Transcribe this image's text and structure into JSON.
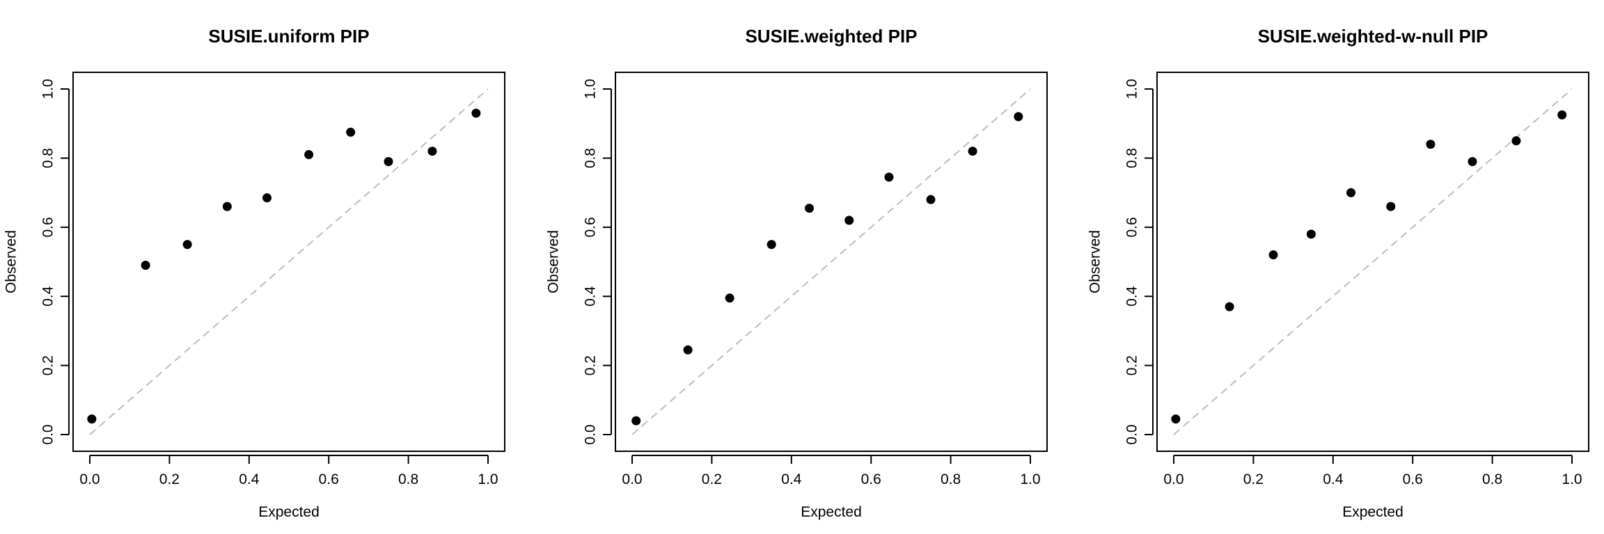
{
  "chart_data": [
    {
      "type": "scatter",
      "title": "SUSIE.uniform PIP",
      "xlabel": "Expected",
      "ylabel": "Observed",
      "xlim": [
        0,
        1
      ],
      "ylim": [
        0,
        1
      ],
      "x_ticks": [
        "0.0",
        "0.2",
        "0.4",
        "0.6",
        "0.8",
        "1.0"
      ],
      "y_ticks": [
        "0.0",
        "0.2",
        "0.4",
        "0.6",
        "0.8",
        "1.0"
      ],
      "reference_line": "y = x, dashed, gray",
      "grid": false,
      "points": {
        "x": [
          0.005,
          0.14,
          0.245,
          0.345,
          0.445,
          0.55,
          0.655,
          0.75,
          0.86,
          0.97
        ],
        "y": [
          0.045,
          0.49,
          0.55,
          0.66,
          0.685,
          0.81,
          0.875,
          0.79,
          0.82,
          0.93
        ]
      }
    },
    {
      "type": "scatter",
      "title": "SUSIE.weighted PIP",
      "xlabel": "Expected",
      "ylabel": "Observed",
      "xlim": [
        0,
        1
      ],
      "ylim": [
        0,
        1
      ],
      "x_ticks": [
        "0.0",
        "0.2",
        "0.4",
        "0.6",
        "0.8",
        "1.0"
      ],
      "y_ticks": [
        "0.0",
        "0.2",
        "0.4",
        "0.6",
        "0.8",
        "1.0"
      ],
      "reference_line": "y = x, dashed, gray",
      "grid": false,
      "points": {
        "x": [
          0.01,
          0.14,
          0.245,
          0.35,
          0.445,
          0.545,
          0.645,
          0.75,
          0.855,
          0.97
        ],
        "y": [
          0.04,
          0.245,
          0.395,
          0.55,
          0.655,
          0.62,
          0.745,
          0.68,
          0.82,
          0.92
        ]
      }
    },
    {
      "type": "scatter",
      "title": "SUSIE.weighted-w-null PIP",
      "xlabel": "Expected",
      "ylabel": "Observed",
      "xlim": [
        0,
        1
      ],
      "ylim": [
        0,
        1
      ],
      "x_ticks": [
        "0.0",
        "0.2",
        "0.4",
        "0.6",
        "0.8",
        "1.0"
      ],
      "y_ticks": [
        "0.0",
        "0.2",
        "0.4",
        "0.6",
        "0.8",
        "1.0"
      ],
      "reference_line": "y = x, dashed, gray",
      "grid": false,
      "points": {
        "x": [
          0.005,
          0.14,
          0.25,
          0.345,
          0.445,
          0.545,
          0.645,
          0.75,
          0.86,
          0.975
        ],
        "y": [
          0.045,
          0.37,
          0.52,
          0.58,
          0.7,
          0.66,
          0.84,
          0.79,
          0.85,
          0.925
        ]
      }
    }
  ]
}
